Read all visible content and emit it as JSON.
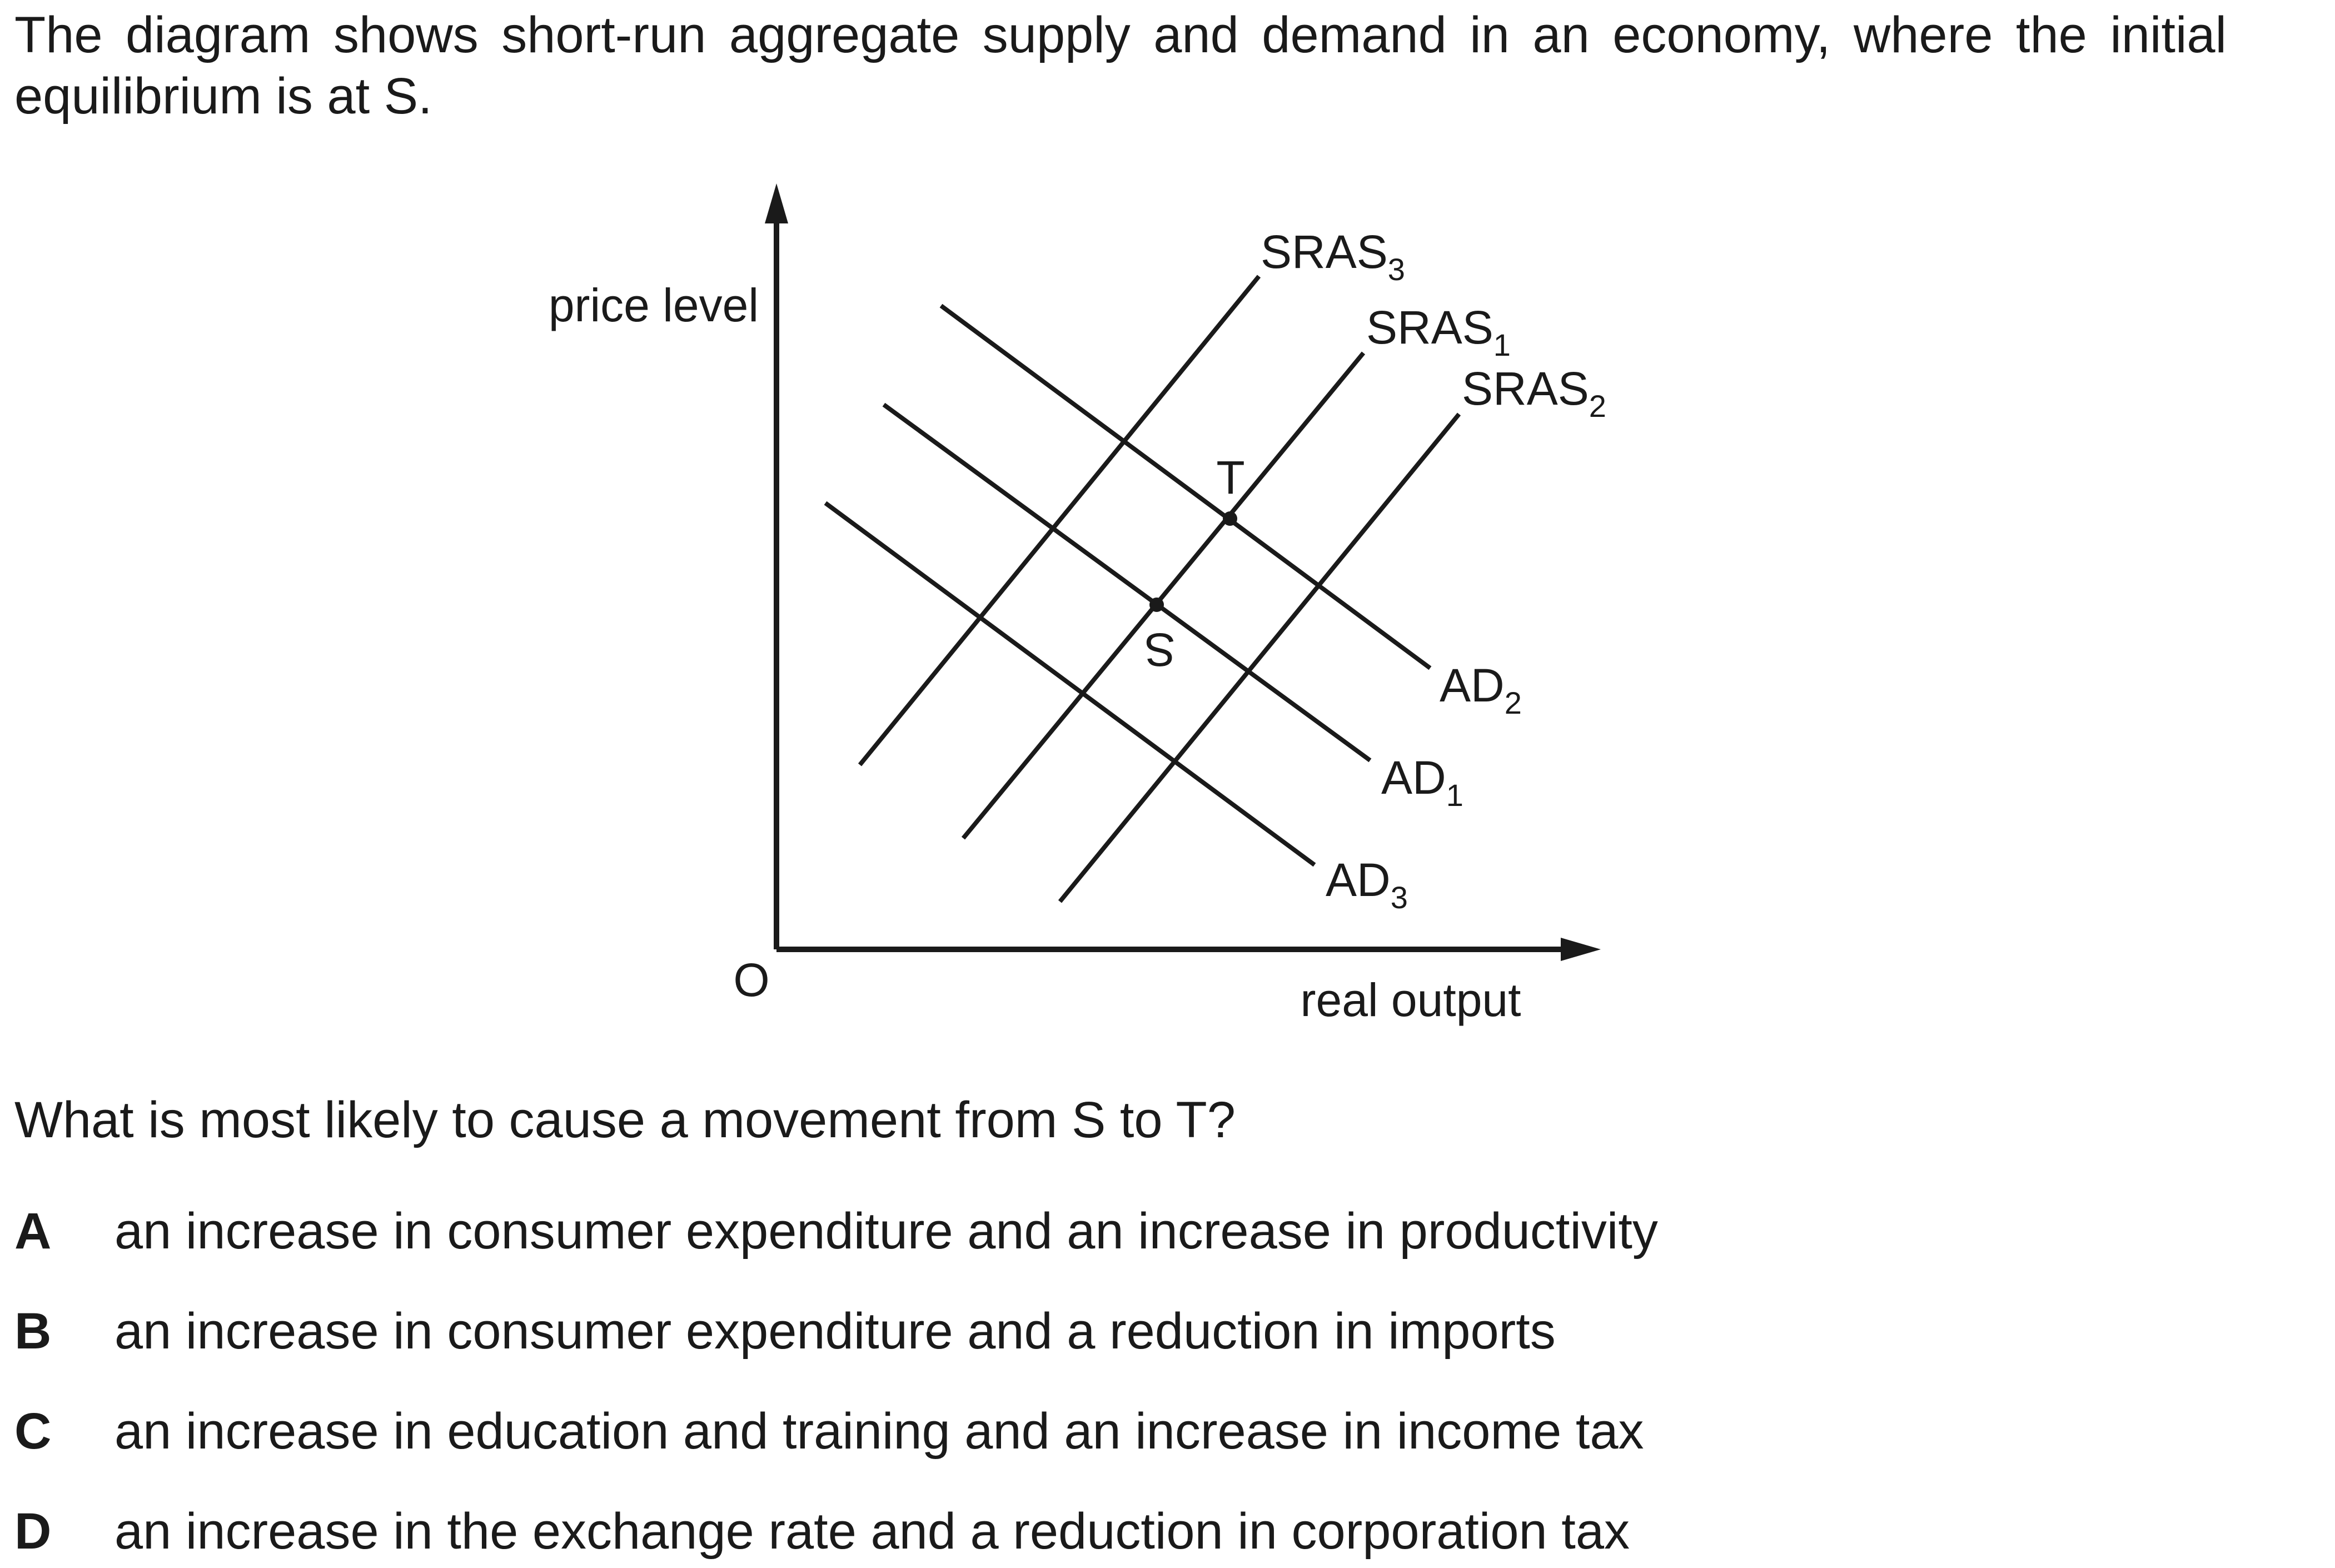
{
  "intro": "The diagram shows short-run aggregate supply and demand in an economy, where the initial equilibrium is at S.",
  "diagram": {
    "y_axis_label": "price level",
    "x_axis_label": "real output",
    "origin_label": "O",
    "curves": {
      "sras3": {
        "name": "SRAS",
        "sub": "3"
      },
      "sras1": {
        "name": "SRAS",
        "sub": "1"
      },
      "sras2": {
        "name": "SRAS",
        "sub": "2"
      },
      "ad2": {
        "name": "AD",
        "sub": "2"
      },
      "ad1": {
        "name": "AD",
        "sub": "1"
      },
      "ad3": {
        "name": "AD",
        "sub": "3"
      }
    },
    "points": {
      "s": "S",
      "t": "T"
    }
  },
  "question": "What is most likely to cause a movement from S to T?",
  "options": [
    {
      "letter": "A",
      "text": "an increase in consumer expenditure and an increase in productivity"
    },
    {
      "letter": "B",
      "text": "an increase in consumer expenditure and a reduction in imports"
    },
    {
      "letter": "C",
      "text": "an increase in education and training and an increase in income tax"
    },
    {
      "letter": "D",
      "text": "an increase in the exchange rate and a reduction in corporation tax"
    }
  ]
}
